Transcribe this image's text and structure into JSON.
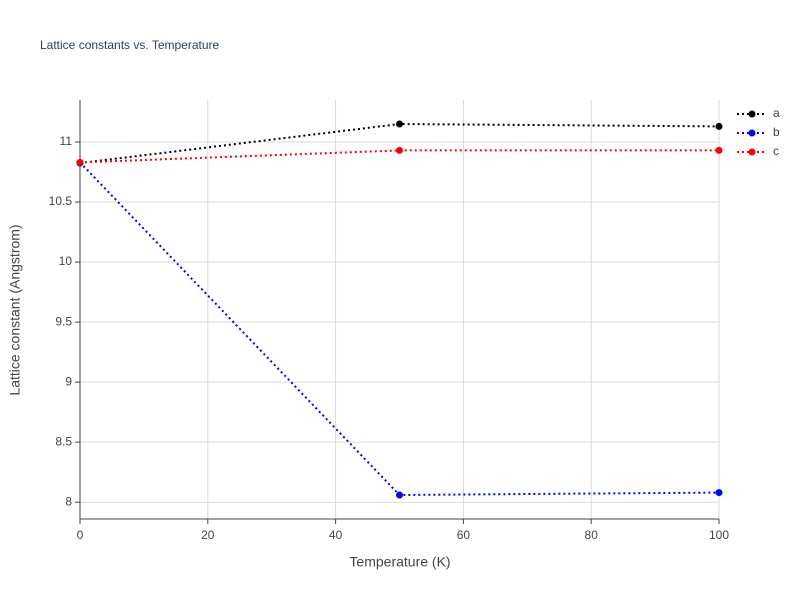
{
  "chart_data": {
    "type": "line",
    "title": "Lattice constants vs. Temperature",
    "x_label": "Temperature (K)",
    "y_label": "Lattice constant (Angstrom)",
    "x": [
      0,
      50,
      100
    ],
    "series": [
      {
        "name": "a",
        "color": "#000000",
        "values": [
          10.825,
          11.15,
          11.13
        ]
      },
      {
        "name": "b",
        "color": "#0000ff",
        "values": [
          10.83,
          8.06,
          8.08
        ]
      },
      {
        "name": "c",
        "color": "#ff0000",
        "values": [
          10.83,
          10.93,
          10.93
        ]
      }
    ],
    "xlim": [
      0,
      100
    ],
    "xticks": [
      0,
      20,
      40,
      60,
      80,
      100
    ],
    "ylim": [
      7.86,
      11.35
    ],
    "yticks": [
      8,
      8.5,
      9,
      9.5,
      10,
      10.5,
      11
    ],
    "grid": true,
    "legend": "top-right",
    "line_style": "dotted"
  }
}
